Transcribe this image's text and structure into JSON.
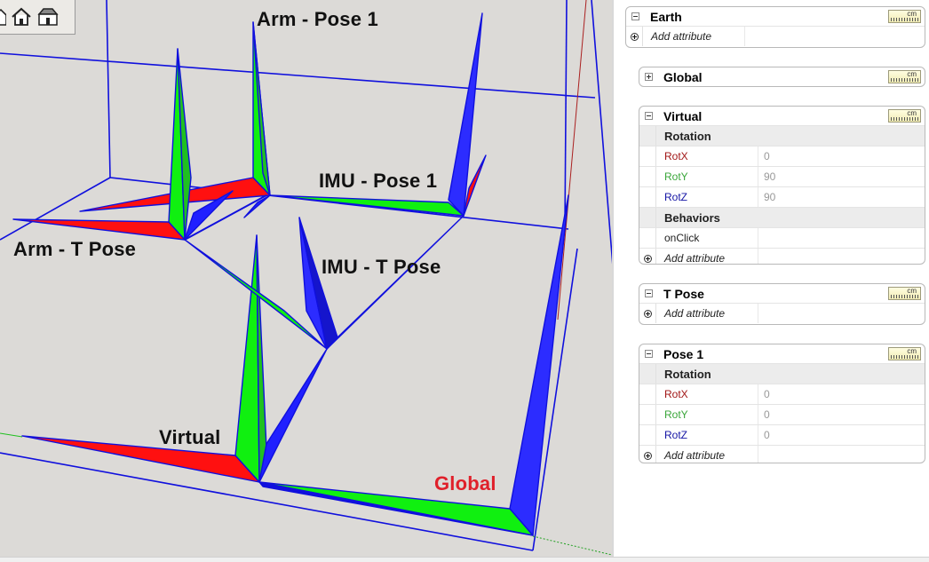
{
  "toolbar": {
    "tools": [
      {
        "icon": "house-side-icon"
      },
      {
        "icon": "house-front-icon"
      },
      {
        "icon": "house-top-icon"
      }
    ]
  },
  "scene": {
    "labels": {
      "arm_pose1": "Arm - Pose 1",
      "imu_pose1": "IMU - Pose 1",
      "arm_tpose": "Arm - T Pose",
      "imu_tpose": "IMU - T Pose",
      "virtual": "Virtual",
      "global": "Global"
    },
    "colors": {
      "x_axis": "#ff0000",
      "y_axis": "#00ff00",
      "z_axis": "#2020ff",
      "outline": "#1010dd",
      "global_label": "#e0202a",
      "background": "#dcdad7"
    }
  },
  "panel": {
    "units_label": "cm",
    "components": [
      {
        "title": "Earth",
        "expanded": true,
        "rows": [
          {
            "kind": "add",
            "label": "Add attribute"
          }
        ]
      },
      {
        "title": "Global",
        "expanded": false,
        "rows": []
      },
      {
        "title": "Virtual",
        "expanded": true,
        "rows": [
          {
            "kind": "group",
            "label": "Rotation"
          },
          {
            "kind": "attr",
            "label": "RotX",
            "value": "0",
            "color": "red"
          },
          {
            "kind": "attr",
            "label": "RotY",
            "value": "90",
            "color": "green"
          },
          {
            "kind": "attr",
            "label": "RotZ",
            "value": "90",
            "color": "blue"
          },
          {
            "kind": "group",
            "label": "Behaviors"
          },
          {
            "kind": "attr",
            "label": "onClick",
            "value": "",
            "color": "dark"
          },
          {
            "kind": "add",
            "label": "Add attribute"
          }
        ]
      },
      {
        "title": "T Pose",
        "expanded": true,
        "rows": [
          {
            "kind": "add",
            "label": "Add attribute"
          }
        ]
      },
      {
        "title": "Pose 1",
        "expanded": true,
        "rows": [
          {
            "kind": "group",
            "label": "Rotation"
          },
          {
            "kind": "attr",
            "label": "RotX",
            "value": "0",
            "color": "red"
          },
          {
            "kind": "attr",
            "label": "RotY",
            "value": "0",
            "color": "green"
          },
          {
            "kind": "attr",
            "label": "RotZ",
            "value": "0",
            "color": "blue"
          },
          {
            "kind": "add",
            "label": "Add attribute"
          }
        ]
      }
    ]
  }
}
